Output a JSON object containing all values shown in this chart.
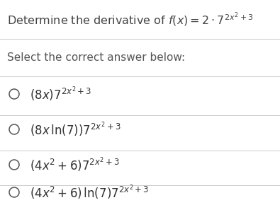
{
  "background_color": "#ffffff",
  "title_plain": "Determine the derivative of ",
  "title_math": "$f(x) = 2 \\cdot 7^{2x^2+3}$",
  "title_color": "#444444",
  "subtitle_text": "Select the correct answer below:",
  "subtitle_color": "#555555",
  "options": [
    "$(8x)7^{2x^2+3}$",
    "$(8x\\,\\ln(7))7^{2x^2+3}$",
    "$(4x^2 + 6)7^{2x^2+3}$",
    "$(4x^2 + 6)\\,\\ln(7)7^{2x^2+3}$"
  ],
  "options_color": "#333333",
  "circle_color": "#555555",
  "line_color": "#cccccc",
  "title_fontsize": 11.5,
  "subtitle_fontsize": 11,
  "options_fontsize": 12,
  "fig_width": 3.95,
  "fig_height": 2.9,
  "dpi": 100
}
